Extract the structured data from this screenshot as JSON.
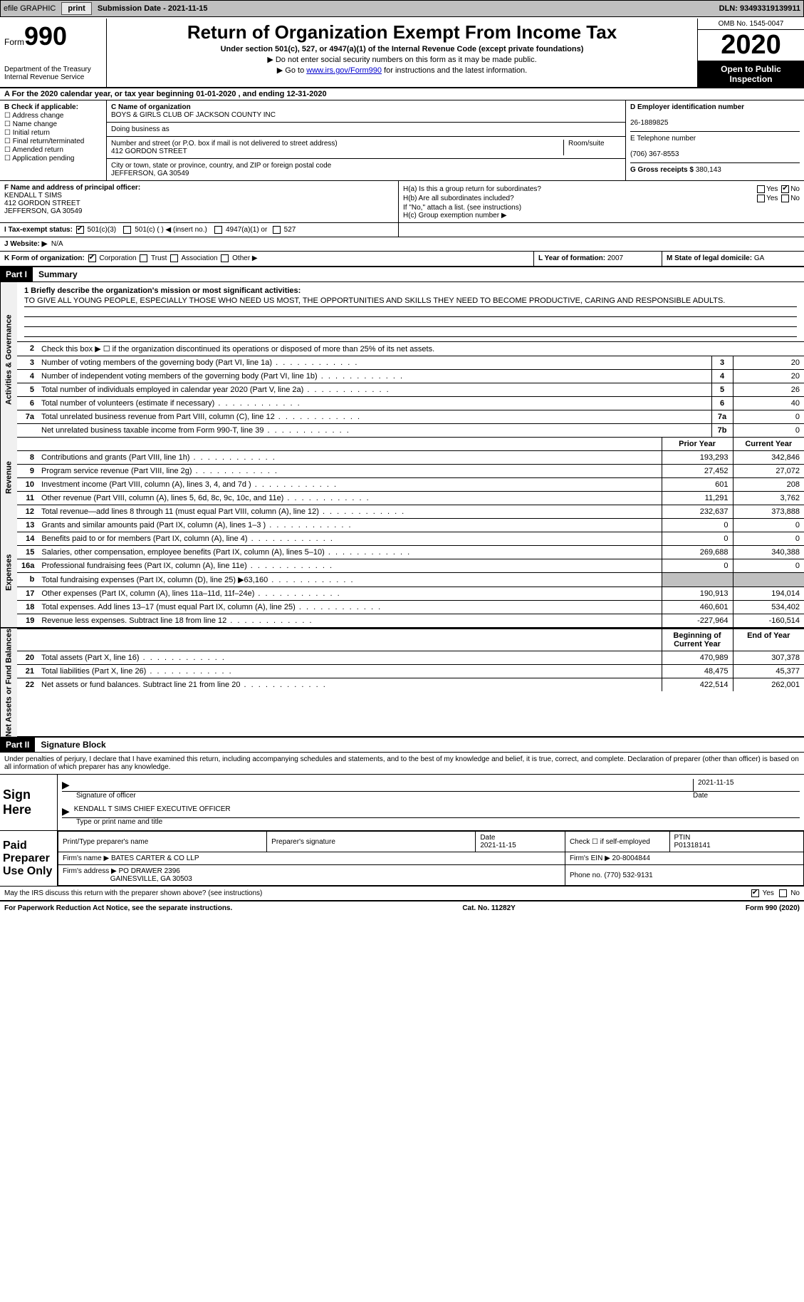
{
  "topbar": {
    "efile": "efile GRAPHIC",
    "print": "print",
    "subdate_label": "Submission Date - ",
    "subdate": "2021-11-15",
    "dln_label": "DLN: ",
    "dln": "93493319139911"
  },
  "header": {
    "form_label": "Form",
    "form_num": "990",
    "dept": "Department of the Treasury\nInternal Revenue Service",
    "title": "Return of Organization Exempt From Income Tax",
    "subtitle": "Under section 501(c), 527, or 4947(a)(1) of the Internal Revenue Code (except private foundations)",
    "note1": "▶ Do not enter social security numbers on this form as it may be made public.",
    "note2_pre": "▶ Go to ",
    "note2_link": "www.irs.gov/Form990",
    "note2_post": " for instructions and the latest information.",
    "omb": "OMB No. 1545-0047",
    "year": "2020",
    "inspection": "Open to Public Inspection"
  },
  "rowA": "A For the 2020 calendar year, or tax year beginning 01-01-2020  , and ending 12-31-2020",
  "B": {
    "label": "B Check if applicable:",
    "opts": [
      "Address change",
      "Name change",
      "Initial return",
      "Final return/terminated",
      "Amended return",
      "Application pending"
    ]
  },
  "C": {
    "name_label": "C Name of organization",
    "name": "BOYS & GIRLS CLUB OF JACKSON COUNTY INC",
    "dba_label": "Doing business as",
    "dba": "",
    "street_label": "Number and street (or P.O. box if mail is not delivered to street address)",
    "street": "412 GORDON STREET",
    "room_label": "Room/suite",
    "room": "",
    "city_label": "City or town, state or province, country, and ZIP or foreign postal code",
    "city": "JEFFERSON, GA  30549"
  },
  "D": {
    "ein_label": "D Employer identification number",
    "ein": "26-1889825",
    "phone_label": "E Telephone number",
    "phone": "(706) 367-8553",
    "gross_label": "G Gross receipts $ ",
    "gross": "380,143"
  },
  "F": {
    "label": "F  Name and address of principal officer:",
    "name": "KENDALL T SIMS",
    "street": "412 GORDON STREET",
    "city": "JEFFERSON, GA  30549"
  },
  "H": {
    "a": "H(a)  Is this a group return for subordinates?",
    "a_yes": "Yes",
    "a_no": "No",
    "b": "H(b)  Are all subordinates included?",
    "b_yes": "Yes",
    "b_no": "No",
    "b_note": "If \"No,\" attach a list. (see instructions)",
    "c": "H(c)  Group exemption number ▶"
  },
  "I": {
    "label": "I  Tax-exempt status:",
    "o1": "501(c)(3)",
    "o2": "501(c) (  ) ◀ (insert no.)",
    "o3": "4947(a)(1) or",
    "o4": "527"
  },
  "J": {
    "label": "J  Website: ▶",
    "val": "N/A"
  },
  "K": {
    "label": "K Form of organization:",
    "o1": "Corporation",
    "o2": "Trust",
    "o3": "Association",
    "o4": "Other ▶"
  },
  "L": {
    "label": "L Year of formation: ",
    "val": "2007"
  },
  "M": {
    "label": "M State of legal domicile: ",
    "val": "GA"
  },
  "part1": {
    "hdr": "Part I",
    "title": "Summary",
    "tab_gov": "Activities & Governance",
    "tab_rev": "Revenue",
    "tab_exp": "Expenses",
    "tab_net": "Net Assets or Fund Balances",
    "l1_label": "1  Briefly describe the organization's mission or most significant activities:",
    "l1_text": "TO GIVE ALL YOUNG PEOPLE, ESPECIALLY THOSE WHO NEED US MOST, THE OPPORTUNITIES AND SKILLS THEY NEED TO BECOME PRODUCTIVE, CARING AND RESPONSIBLE ADULTS.",
    "l2": "Check this box ▶ ☐  if the organization discontinued its operations or disposed of more than 25% of its net assets.",
    "lines_gov": [
      {
        "n": "3",
        "t": "Number of voting members of the governing body (Part VI, line 1a)",
        "c": "3",
        "v": "20"
      },
      {
        "n": "4",
        "t": "Number of independent voting members of the governing body (Part VI, line 1b)",
        "c": "4",
        "v": "20"
      },
      {
        "n": "5",
        "t": "Total number of individuals employed in calendar year 2020 (Part V, line 2a)",
        "c": "5",
        "v": "26"
      },
      {
        "n": "6",
        "t": "Total number of volunteers (estimate if necessary)",
        "c": "6",
        "v": "40"
      },
      {
        "n": "7a",
        "t": "Total unrelated business revenue from Part VIII, column (C), line 12",
        "c": "7a",
        "v": "0"
      },
      {
        "n": "",
        "t": "Net unrelated business taxable income from Form 990-T, line 39",
        "c": "7b",
        "v": "0"
      }
    ],
    "col_prior": "Prior Year",
    "col_curr": "Current Year",
    "lines_rev": [
      {
        "n": "8",
        "t": "Contributions and grants (Part VIII, line 1h)",
        "p": "193,293",
        "c": "342,846"
      },
      {
        "n": "9",
        "t": "Program service revenue (Part VIII, line 2g)",
        "p": "27,452",
        "c": "27,072"
      },
      {
        "n": "10",
        "t": "Investment income (Part VIII, column (A), lines 3, 4, and 7d )",
        "p": "601",
        "c": "208"
      },
      {
        "n": "11",
        "t": "Other revenue (Part VIII, column (A), lines 5, 6d, 8c, 9c, 10c, and 11e)",
        "p": "11,291",
        "c": "3,762"
      },
      {
        "n": "12",
        "t": "Total revenue—add lines 8 through 11 (must equal Part VIII, column (A), line 12)",
        "p": "232,637",
        "c": "373,888"
      }
    ],
    "lines_exp": [
      {
        "n": "13",
        "t": "Grants and similar amounts paid (Part IX, column (A), lines 1–3 )",
        "p": "0",
        "c": "0"
      },
      {
        "n": "14",
        "t": "Benefits paid to or for members (Part IX, column (A), line 4)",
        "p": "0",
        "c": "0"
      },
      {
        "n": "15",
        "t": "Salaries, other compensation, employee benefits (Part IX, column (A), lines 5–10)",
        "p": "269,688",
        "c": "340,388"
      },
      {
        "n": "16a",
        "t": "Professional fundraising fees (Part IX, column (A), line 11e)",
        "p": "0",
        "c": "0"
      },
      {
        "n": "b",
        "t": "Total fundraising expenses (Part IX, column (D), line 25) ▶63,160",
        "p": "",
        "c": "",
        "shaded": true
      },
      {
        "n": "17",
        "t": "Other expenses (Part IX, column (A), lines 11a–11d, 11f–24e)",
        "p": "190,913",
        "c": "194,014"
      },
      {
        "n": "18",
        "t": "Total expenses. Add lines 13–17 (must equal Part IX, column (A), line 25)",
        "p": "460,601",
        "c": "534,402"
      },
      {
        "n": "19",
        "t": "Revenue less expenses. Subtract line 18 from line 12",
        "p": "-227,964",
        "c": "-160,514"
      }
    ],
    "col_beg": "Beginning of Current Year",
    "col_end": "End of Year",
    "lines_net": [
      {
        "n": "20",
        "t": "Total assets (Part X, line 16)",
        "p": "470,989",
        "c": "307,378"
      },
      {
        "n": "21",
        "t": "Total liabilities (Part X, line 26)",
        "p": "48,475",
        "c": "45,377"
      },
      {
        "n": "22",
        "t": "Net assets or fund balances. Subtract line 21 from line 20",
        "p": "422,514",
        "c": "262,001"
      }
    ]
  },
  "part2": {
    "hdr": "Part II",
    "title": "Signature Block",
    "decl": "Under penalties of perjury, I declare that I have examined this return, including accompanying schedules and statements, and to the best of my knowledge and belief, it is true, correct, and complete. Declaration of preparer (other than officer) is based on all information of which preparer has any knowledge.",
    "sign_here": "Sign Here",
    "sig_officer": "Signature of officer",
    "sig_date": "Date",
    "sig_date_val": "2021-11-15",
    "officer_name": "KENDALL T SIMS  CHIEF EXECUTIVE OFFICER",
    "type_name": "Type or print name and title",
    "paid_prep": "Paid Preparer Use Only",
    "pt_name_label": "Print/Type preparer's name",
    "pt_sig_label": "Preparer's signature",
    "pt_date_label": "Date",
    "pt_date": "2021-11-15",
    "pt_self": "Check ☐ if self-employed",
    "ptin_label": "PTIN",
    "ptin": "P01318141",
    "firm_name_label": "Firm's name    ▶",
    "firm_name": "BATES CARTER & CO LLP",
    "firm_ein_label": "Firm's EIN ▶",
    "firm_ein": "20-8004844",
    "firm_addr_label": "Firm's address ▶",
    "firm_addr1": "PO DRAWER 2396",
    "firm_addr2": "GAINESVILLE, GA  30503",
    "firm_phone_label": "Phone no.",
    "firm_phone": "(770) 532-9131",
    "discuss": "May the IRS discuss this return with the preparer shown above? (see instructions)",
    "d_yes": "Yes",
    "d_no": "No"
  },
  "footer": {
    "pra": "For Paperwork Reduction Act Notice, see the separate instructions.",
    "cat": "Cat. No. 11282Y",
    "form": "Form 990 (2020)"
  }
}
